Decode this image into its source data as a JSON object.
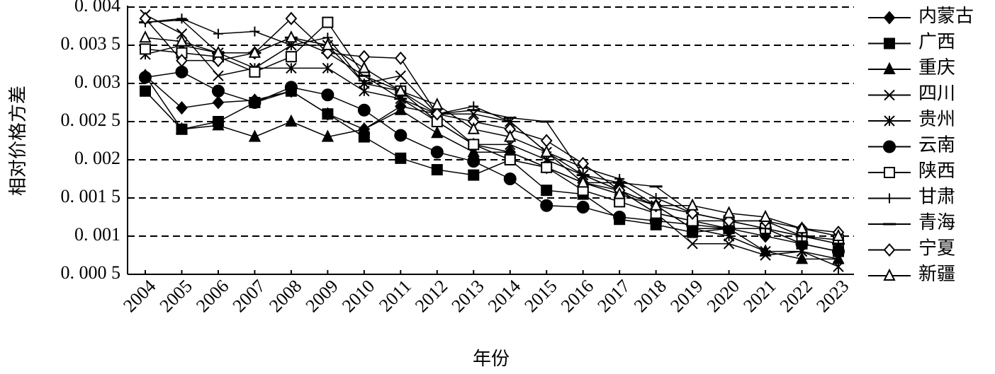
{
  "chart_data": {
    "type": "line",
    "y_label": "相对价格方差",
    "x_label": "年份",
    "categories": [
      "2004",
      "2005",
      "2006",
      "2007",
      "2008",
      "2009",
      "2010",
      "2011",
      "2012",
      "2013",
      "2014",
      "2015",
      "2016",
      "2017",
      "2018",
      "2019",
      "2020",
      "2021",
      "2022",
      "2023"
    ],
    "ylim": [
      0.0005,
      0.004
    ],
    "yticks": [
      {
        "value": 0.0005,
        "label": "0. 000 5"
      },
      {
        "value": 0.001,
        "label": "0. 001"
      },
      {
        "value": 0.0015,
        "label": "0. 001 5"
      },
      {
        "value": 0.002,
        "label": "0. 002"
      },
      {
        "value": 0.0025,
        "label": "0. 002 5"
      },
      {
        "value": 0.003,
        "label": "0. 003"
      },
      {
        "value": 0.0035,
        "label": "0. 003 5"
      },
      {
        "value": 0.004,
        "label": "0. 004"
      }
    ],
    "grid": true,
    "legend": "right",
    "series": [
      {
        "name": "内蒙古",
        "color": "#000000",
        "marker": "diamond",
        "values": [
          0.0031,
          0.00268,
          0.00275,
          0.00278,
          0.0029,
          0.0026,
          0.0024,
          0.0027,
          0.0026,
          0.0022,
          0.0021,
          0.0019,
          0.0017,
          0.0016,
          0.0013,
          0.0012,
          0.0011,
          0.001,
          0.0009,
          0.0008
        ]
      },
      {
        "name": "广西",
        "color": "#000000",
        "marker": "square",
        "values": [
          0.0029,
          0.0024,
          0.0025,
          0.00275,
          0.0029,
          0.0026,
          0.0023,
          0.00202,
          0.00187,
          0.0018,
          0.002,
          0.0016,
          0.00155,
          0.00122,
          0.00115,
          0.00105,
          0.0011,
          0.0011,
          0.0009,
          0.0008
        ]
      },
      {
        "name": "重庆",
        "color": "#000000",
        "marker": "triangle",
        "values": [
          0.0031,
          0.0024,
          0.00245,
          0.0023,
          0.0025,
          0.0023,
          0.0024,
          0.00265,
          0.00235,
          0.0021,
          0.0021,
          0.0019,
          0.0017,
          0.0017,
          0.0014,
          0.0011,
          0.0011,
          0.0008,
          0.0007,
          0.0007
        ]
      },
      {
        "name": "四川",
        "color": "#000000",
        "marker": "x",
        "values": [
          0.0039,
          0.00365,
          0.0031,
          0.0032,
          0.0035,
          0.0035,
          0.003,
          0.0031,
          0.0026,
          0.0026,
          0.0025,
          0.0021,
          0.0018,
          0.0016,
          0.0013,
          0.0009,
          0.0009,
          0.00075,
          0.0008,
          0.0007
        ]
      },
      {
        "name": "贵州",
        "color": "#000000",
        "marker": "asterisk",
        "values": [
          0.00338,
          0.0035,
          0.0034,
          0.0032,
          0.0032,
          0.0032,
          0.0029,
          0.0028,
          0.0025,
          0.0022,
          0.0022,
          0.002,
          0.0018,
          0.0016,
          0.0014,
          0.0011,
          0.001,
          0.0008,
          0.0008,
          0.0006
        ]
      },
      {
        "name": "云南",
        "color": "#000000",
        "marker": "circle",
        "values": [
          0.00308,
          0.00315,
          0.0029,
          0.00275,
          0.00295,
          0.00285,
          0.00265,
          0.00232,
          0.0021,
          0.00198,
          0.00175,
          0.0014,
          0.00138,
          0.00125,
          0.0012,
          0.00115,
          0.0011,
          0.0011,
          0.0009,
          0.0008
        ]
      },
      {
        "name": "陕西",
        "color": "#000000",
        "marker": "square-open",
        "values": [
          0.00345,
          0.0034,
          0.00335,
          0.00315,
          0.00335,
          0.0038,
          0.0031,
          0.0029,
          0.0025,
          0.0022,
          0.002,
          0.0019,
          0.0016,
          0.00145,
          0.0013,
          0.0012,
          0.0012,
          0.0011,
          0.001,
          0.00095
        ]
      },
      {
        "name": "甘肃",
        "color": "#000000",
        "marker": "plus",
        "values": [
          0.0038,
          0.00385,
          0.00365,
          0.00368,
          0.0035,
          0.0036,
          0.003,
          0.0029,
          0.0026,
          0.0027,
          0.0025,
          0.0021,
          0.0019,
          0.00175,
          0.0015,
          0.0013,
          0.0012,
          0.0011,
          0.001,
          0.0009
        ]
      },
      {
        "name": "青海",
        "color": "#000000",
        "marker": "dash",
        "values": [
          0.0038,
          0.00383,
          0.0034,
          0.0034,
          0.0036,
          0.0034,
          0.0031,
          0.0028,
          0.0026,
          0.00265,
          0.00255,
          0.0025,
          0.0018,
          0.0017,
          0.00165,
          0.0013,
          0.0012,
          0.0012,
          0.001,
          0.0009
        ]
      },
      {
        "name": "宁夏",
        "color": "#000000",
        "marker": "diamond-open",
        "values": [
          0.00385,
          0.0033,
          0.0033,
          0.0034,
          0.00385,
          0.0034,
          0.00335,
          0.00333,
          0.0026,
          0.0025,
          0.0024,
          0.00225,
          0.00195,
          0.0016,
          0.0014,
          0.0013,
          0.0012,
          0.0012,
          0.0011,
          0.00105
        ]
      },
      {
        "name": "新疆",
        "color": "#000000",
        "marker": "triangle-open",
        "values": [
          0.0036,
          0.00355,
          0.0034,
          0.0034,
          0.0036,
          0.0035,
          0.0032,
          0.0029,
          0.00272,
          0.0024,
          0.0023,
          0.0021,
          0.0017,
          0.00155,
          0.0014,
          0.0014,
          0.0013,
          0.00125,
          0.0011,
          0.001
        ]
      }
    ]
  }
}
